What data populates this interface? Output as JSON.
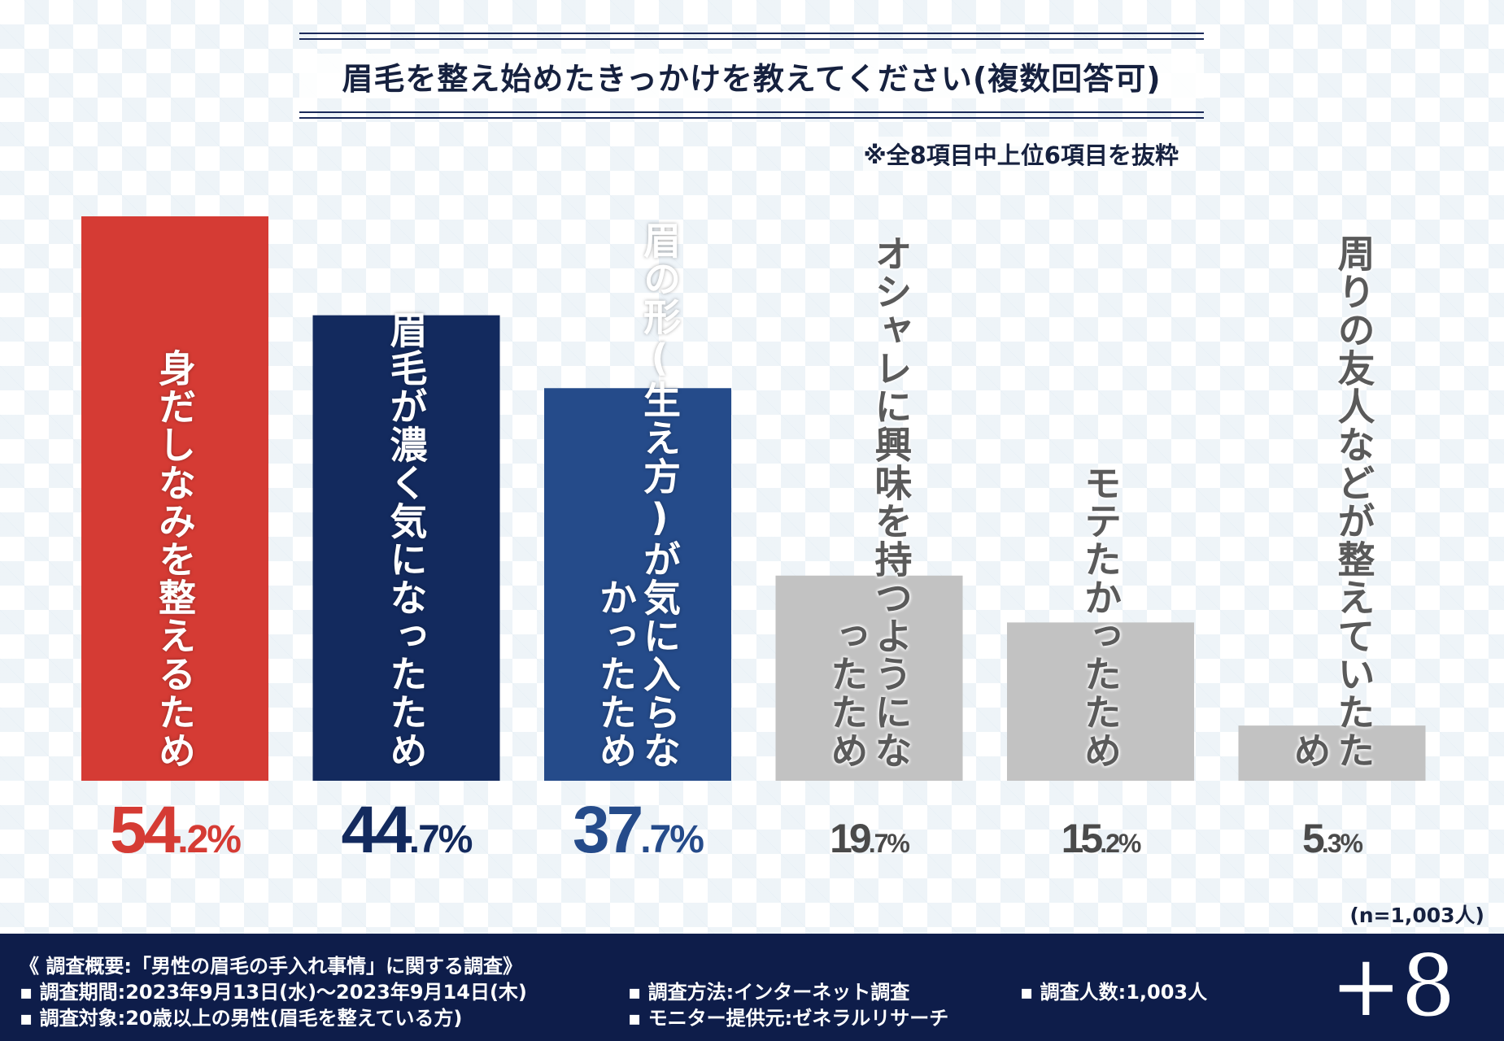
{
  "chart_data": {
    "type": "bar",
    "title": "眉毛を整え始めたきっかけを教えてください(複数回答可)",
    "note": "※全8項目中上位6項目を抜粋",
    "categories": [
      "身だしなみを整えるため",
      "眉毛が濃く気になったため",
      "眉の形(生え方)が気に入らなかったため",
      "オシャレに興味を持つようになったため",
      "モテたかったため",
      "周りの友人などが整えていたため"
    ],
    "values": [
      54.2,
      44.7,
      37.7,
      19.7,
      15.2,
      5.3
    ],
    "value_labels": [
      "54.2%",
      "44.7%",
      "37.7%",
      "19.7%",
      "15.2%",
      "5.3%"
    ],
    "colors": [
      "#d53b34",
      "#132a5e",
      "#254b8a",
      "#c2c2c2",
      "#c2c2c2",
      "#c2c2c2"
    ],
    "label_colors": [
      "#d53b34",
      "#132a5e",
      "#254b8a",
      "#4a4a4a",
      "#4a4a4a",
      "#4a4a4a"
    ],
    "ylim": [
      0,
      60
    ],
    "sample_size": "(n=1,003人)"
  },
  "footer": {
    "summary": "《 調査概要:「男性の眉毛の手入れ事情」に関する調査》",
    "period": "▪ 調査期間:2023年9月13日(水)〜2023年9月14日(木)",
    "target": "▪ 調査対象:20歳以上の男性(眉毛を整えている方)",
    "method": "▪ 調査方法:インターネット調査",
    "provider": "▪ モニター提供元:ゼネラルリサーチ",
    "count": "▪ 調査人数:1,003人",
    "logo": "+8"
  }
}
